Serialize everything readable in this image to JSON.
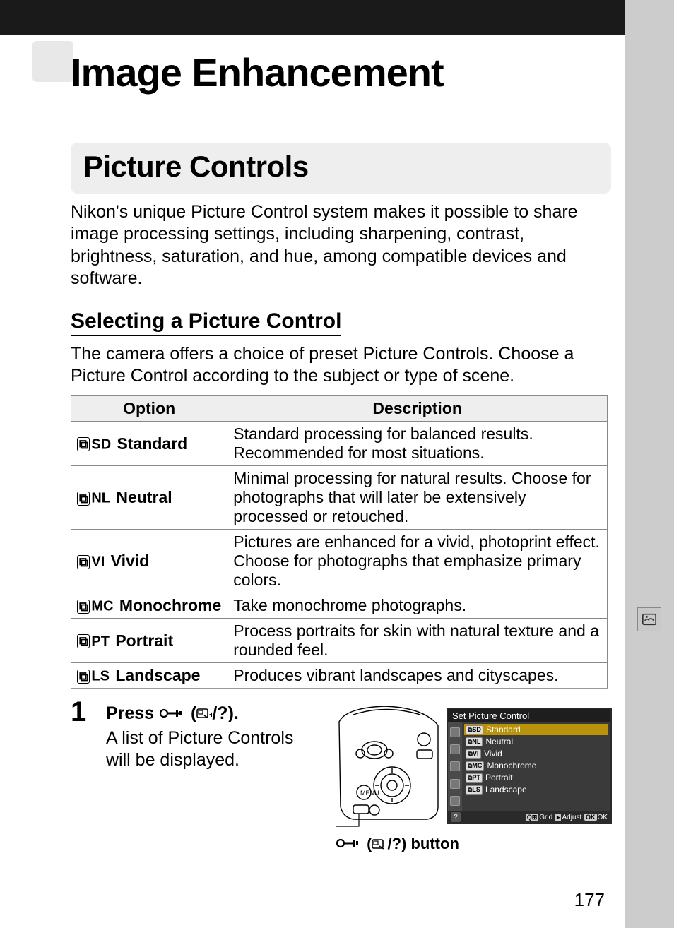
{
  "chapter_title": "Image Enhancement",
  "section_title": "Picture Controls",
  "intro": "Nikon's unique Picture Control system makes it possible to share image processing settings, including sharpening, contrast, brightness, saturation, and hue, among compatible devices and software.",
  "sub_heading": "Selecting a Picture Control",
  "sub_para": "The camera offers a choice of preset Picture Controls.  Choose a Picture Control according to the subject or type of scene.",
  "table": {
    "headers": [
      "Option",
      "Description"
    ],
    "rows": [
      {
        "code": "SD",
        "name": "Standard",
        "desc": "Standard processing for balanced results.  Recommended for most situations."
      },
      {
        "code": "NL",
        "name": "Neutral",
        "desc": "Minimal processing for natural results.  Choose for photographs that will later be extensively processed or retouched."
      },
      {
        "code": "VI",
        "name": "Vivid",
        "desc": "Pictures are enhanced for a vivid, photoprint effect.  Choose for photographs that emphasize primary colors."
      },
      {
        "code": "MC",
        "name": "Monochrome",
        "desc": "Take monochrome photographs."
      },
      {
        "code": "PT",
        "name": "Portrait",
        "desc": "Process portraits for skin with natural texture and a rounded feel."
      },
      {
        "code": "LS",
        "name": "Landscape",
        "desc": "Produces vibrant landscapes and cityscapes."
      }
    ]
  },
  "step": {
    "num": "1",
    "title_prefix": "Press ",
    "title_suffix": ").",
    "body": "A list of Picture Controls will be displayed.",
    "caption_suffix": ") button"
  },
  "lcd": {
    "title": "Set Picture Control",
    "items": [
      {
        "code": "SD",
        "label": "Standard",
        "selected": true
      },
      {
        "code": "NL",
        "label": "Neutral",
        "selected": false
      },
      {
        "code": "VI",
        "label": "Vivid",
        "selected": false
      },
      {
        "code": "MC",
        "label": "Monochrome",
        "selected": false
      },
      {
        "code": "PT",
        "label": "Portrait",
        "selected": false
      },
      {
        "code": "LS",
        "label": "Landscape",
        "selected": false
      }
    ],
    "footer": {
      "grid": "Grid",
      "adjust": "Adjust",
      "ok": "OK"
    }
  },
  "page_number": "177",
  "colors": {
    "page_bg": "#ffffff",
    "outer_bg": "#cccccc",
    "banner_bg": "#eeeeee",
    "table_header_bg": "#eeeeee",
    "lcd_bg": "#3a3a3a",
    "lcd_selected": "#b8920b"
  }
}
